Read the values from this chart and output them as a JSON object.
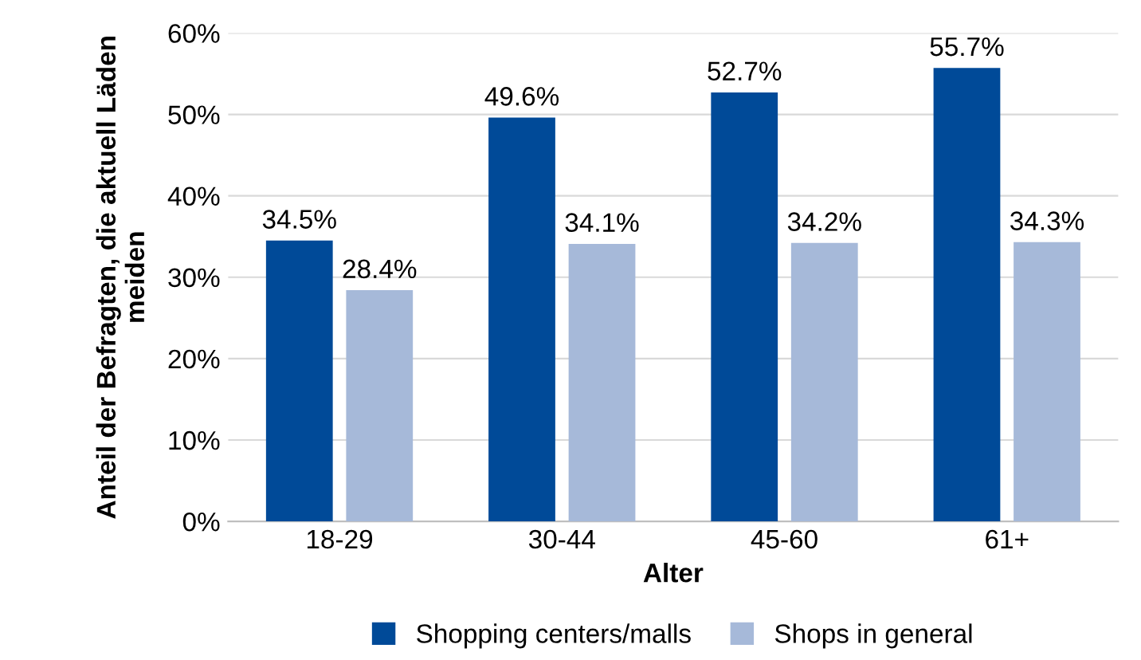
{
  "chart_data": {
    "type": "bar",
    "xlabel": "Alter",
    "ylabel": "Anteil der Befragten, die aktuell Läden meiden",
    "categories": [
      "18-29",
      "30-44",
      "45-60",
      "61+"
    ],
    "series": [
      {
        "name": "Shopping centers/malls",
        "color": "#004a98",
        "values": [
          34.5,
          49.6,
          52.7,
          55.7
        ],
        "value_labels": [
          "34.5%",
          "49.6%",
          "52.7%",
          "55.7%"
        ]
      },
      {
        "name": "Shops in general",
        "color": "#a6b9d9",
        "values": [
          28.4,
          34.1,
          34.2,
          34.3
        ],
        "value_labels": [
          "28.4%",
          "34.1%",
          "34.2%",
          "34.3%"
        ]
      }
    ],
    "ylim": [
      0,
      60
    ],
    "yticks": [
      {
        "value": 0,
        "label": "0%"
      },
      {
        "value": 10,
        "label": "10%"
      },
      {
        "value": 20,
        "label": "20%"
      },
      {
        "value": 30,
        "label": "30%"
      },
      {
        "value": 40,
        "label": "40%"
      },
      {
        "value": 50,
        "label": "50%"
      },
      {
        "value": 60,
        "label": "60%"
      }
    ],
    "grid": "y",
    "legend": "bottom"
  }
}
